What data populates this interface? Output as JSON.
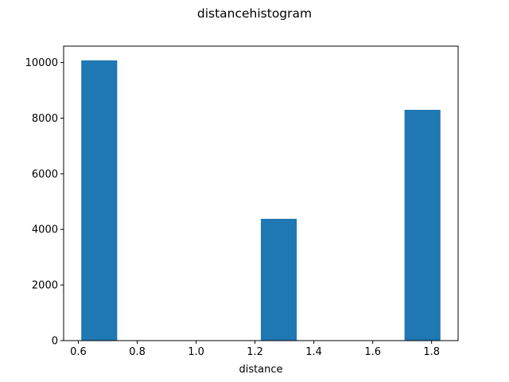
{
  "chart_data": {
    "type": "bar",
    "title": "distancehistogram",
    "xlabel": "distance",
    "ylabel": "",
    "xlim": [
      0.55,
      1.89
    ],
    "ylim": [
      0,
      10590
    ],
    "xticks": [
      0.6,
      0.8,
      1.0,
      1.2,
      1.4,
      1.6,
      1.8
    ],
    "xtick_labels": [
      "0.6",
      "0.8",
      "1.0",
      "1.2",
      "1.4",
      "1.6",
      "1.8"
    ],
    "yticks": [
      0,
      2000,
      4000,
      6000,
      8000,
      10000
    ],
    "ytick_labels": [
      "0",
      "2000",
      "4000",
      "6000",
      "8000",
      "10000"
    ],
    "bins": [
      {
        "start": 0.61,
        "end": 0.732,
        "count": 10080
      },
      {
        "start": 0.732,
        "end": 0.854,
        "count": 0
      },
      {
        "start": 0.854,
        "end": 0.976,
        "count": 0
      },
      {
        "start": 0.976,
        "end": 1.098,
        "count": 0
      },
      {
        "start": 1.098,
        "end": 1.22,
        "count": 0
      },
      {
        "start": 1.22,
        "end": 1.342,
        "count": 4380
      },
      {
        "start": 1.342,
        "end": 1.464,
        "count": 0
      },
      {
        "start": 1.464,
        "end": 1.586,
        "count": 0
      },
      {
        "start": 1.586,
        "end": 1.708,
        "count": 0
      },
      {
        "start": 1.708,
        "end": 1.83,
        "count": 8300
      }
    ],
    "bar_color": "#1f77b4",
    "grid": false,
    "legend": "none"
  }
}
